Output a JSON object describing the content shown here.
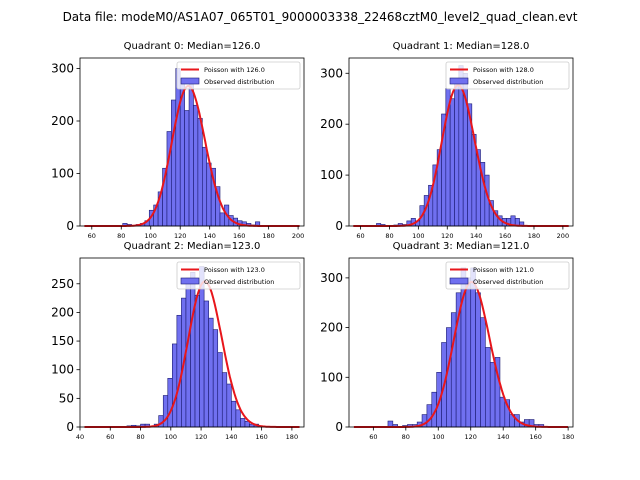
{
  "suptitle": "Data file: modeM0/AS1A07_065T01_9000003338_22468cztM0_level2_quad_clean.evt",
  "colors": {
    "observed_fill": "#7070f0",
    "observed_edge": "#1a1a70",
    "poisson": "#e8161b",
    "legend_edge": "#cccccc"
  },
  "chart_data": [
    {
      "type": "bar",
      "title": "Quadrant 0: Median=126.0",
      "legend": {
        "poisson_label": "Poisson with 126.0",
        "observed_label": "Observed distribution",
        "placement": "top-right"
      },
      "xlim": [
        52,
        204
      ],
      "ylim": [
        0,
        320
      ],
      "xticks": [
        60,
        80,
        100,
        120,
        140,
        160,
        180,
        200
      ],
      "yticks": [
        0,
        100,
        200,
        300
      ],
      "bin_width": 3.0,
      "bins_x": [
        57,
        60,
        63,
        66,
        69,
        72,
        75,
        78,
        81,
        84,
        87,
        90,
        93,
        96,
        99,
        102,
        105,
        108,
        111,
        114,
        117,
        120,
        123,
        126,
        129,
        132,
        135,
        138,
        141,
        144,
        147,
        150,
        153,
        156,
        159,
        162,
        165,
        168,
        171,
        174,
        177,
        180,
        183,
        186,
        189,
        192,
        195,
        198
      ],
      "bins_y": [
        0,
        0,
        0,
        0,
        0,
        0,
        0,
        0,
        5,
        3,
        0,
        3,
        5,
        10,
        30,
        40,
        65,
        110,
        180,
        240,
        300,
        280,
        220,
        270,
        230,
        205,
        150,
        120,
        110,
        75,
        25,
        40,
        20,
        15,
        10,
        8,
        5,
        2,
        8,
        0,
        0,
        0,
        0,
        0,
        0,
        0,
        0,
        0
      ],
      "poisson_mean": 126.0,
      "poisson_scale": 7506
    },
    {
      "type": "bar",
      "title": "Quadrant 1: Median=128.0",
      "legend": {
        "poisson_label": "Poisson with 128.0",
        "observed_label": "Observed distribution",
        "placement": "top-right"
      },
      "xlim": [
        52,
        207
      ],
      "ylim": [
        0,
        330
      ],
      "xticks": [
        60,
        80,
        100,
        120,
        140,
        160,
        180,
        200
      ],
      "yticks": [
        0,
        100,
        200,
        300
      ],
      "bin_width": 3.0,
      "bins_x": [
        59,
        62,
        65,
        68,
        71,
        74,
        77,
        80,
        83,
        86,
        89,
        92,
        95,
        98,
        101,
        104,
        107,
        110,
        113,
        116,
        119,
        122,
        125,
        128,
        131,
        134,
        137,
        140,
        143,
        146,
        149,
        152,
        155,
        158,
        161,
        164,
        167,
        170,
        173,
        176,
        179,
        182,
        185,
        188,
        191,
        194,
        197,
        200
      ],
      "bins_y": [
        0,
        0,
        0,
        0,
        5,
        3,
        0,
        0,
        2,
        5,
        3,
        10,
        15,
        10,
        40,
        60,
        80,
        120,
        150,
        220,
        270,
        250,
        280,
        315,
        300,
        240,
        180,
        150,
        125,
        100,
        50,
        30,
        20,
        15,
        15,
        20,
        15,
        8,
        0,
        0,
        0,
        0,
        0,
        0,
        0,
        0,
        0,
        0
      ],
      "poisson_mean": 128.0,
      "poisson_scale": 7850
    },
    {
      "type": "bar",
      "title": "Quadrant 2: Median=123.0",
      "legend": {
        "poisson_label": "Poisson with 123.0",
        "observed_label": "Observed distribution",
        "placement": "top-right"
      },
      "xlim": [
        40,
        188
      ],
      "ylim": [
        0,
        295
      ],
      "xticks": [
        40,
        60,
        80,
        100,
        120,
        140,
        160,
        180
      ],
      "yticks": [
        0,
        50,
        100,
        150,
        200,
        250
      ],
      "bin_width": 3.0,
      "bins_x": [
        47,
        50,
        53,
        56,
        59,
        62,
        65,
        68,
        71,
        74,
        77,
        80,
        83,
        86,
        89,
        92,
        95,
        98,
        101,
        104,
        107,
        110,
        113,
        116,
        119,
        122,
        125,
        128,
        131,
        134,
        137,
        140,
        143,
        146,
        149,
        152,
        155,
        158,
        161,
        164,
        167,
        170,
        173,
        176,
        179,
        182
      ],
      "bins_y": [
        0,
        0,
        0,
        0,
        0,
        0,
        0,
        0,
        2,
        3,
        2,
        5,
        5,
        0,
        5,
        20,
        55,
        85,
        145,
        195,
        225,
        260,
        270,
        230,
        280,
        220,
        190,
        170,
        130,
        95,
        75,
        45,
        30,
        15,
        10,
        5,
        5,
        2,
        0,
        0,
        0,
        0,
        0,
        0,
        0,
        0
      ],
      "poisson_mean": 123.0,
      "poisson_scale": 7066
    },
    {
      "type": "bar",
      "title": "Quadrant 3: Median=121.0",
      "legend": {
        "poisson_label": "Poisson with 121.0",
        "observed_label": "Observed distribution",
        "placement": "top-right"
      },
      "xlim": [
        45,
        183
      ],
      "ylim": [
        0,
        340
      ],
      "xticks": [
        60,
        80,
        100,
        120,
        140,
        160,
        180
      ],
      "yticks": [
        0,
        100,
        200,
        300
      ],
      "bin_width": 3.0,
      "bins_x": [
        51,
        54,
        57,
        60,
        63,
        66,
        69,
        72,
        75,
        78,
        81,
        84,
        87,
        90,
        93,
        96,
        99,
        102,
        105,
        108,
        111,
        114,
        117,
        120,
        123,
        126,
        129,
        132,
        135,
        138,
        141,
        144,
        147,
        150,
        153,
        156,
        159,
        162,
        165,
        168,
        171,
        174,
        177
      ],
      "bins_y": [
        0,
        0,
        0,
        0,
        0,
        0,
        12,
        5,
        0,
        3,
        5,
        5,
        10,
        25,
        45,
        70,
        110,
        170,
        200,
        230,
        270,
        320,
        300,
        320,
        270,
        220,
        160,
        130,
        140,
        60,
        55,
        25,
        25,
        10,
        15,
        15,
        5,
        5,
        0,
        0,
        0,
        0,
        0
      ],
      "poisson_mean": 121.0,
      "poisson_scale": 8046
    }
  ]
}
